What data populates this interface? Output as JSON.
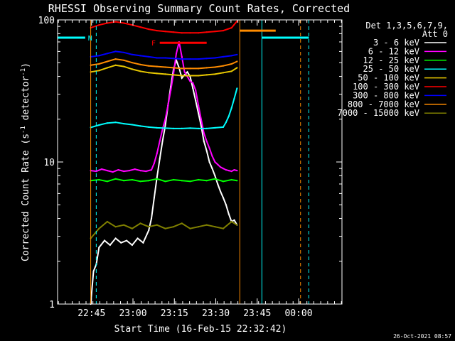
{
  "chart_data": {
    "type": "line",
    "title": "RHESSI Observing Summary Count Rates, Corrected",
    "xlabel": "Start Time (16-Feb-15 22:32:42)",
    "ylabel": "Corrected Count Rate (s",
    "ylabel_sup1": "-1",
    "ylabel_mid": " detector",
    "ylabel_sup2": "-1",
    "ylabel_end": ")",
    "x_unit": "minutes after 22:32:42",
    "xlim": [
      0,
      103
    ],
    "ylim": [
      1,
      100
    ],
    "yscale": "log",
    "x_ticks": [
      {
        "label": "22:45",
        "x": 12.3
      },
      {
        "label": "23:00",
        "x": 27.3
      },
      {
        "label": "23:15",
        "x": 42.3
      },
      {
        "label": "23:30",
        "x": 57.3
      },
      {
        "label": "23:45",
        "x": 72.3
      },
      {
        "label": "00:00",
        "x": 87.3
      }
    ],
    "y_ticks": [
      {
        "label": "1",
        "y": 1
      },
      {
        "label": "10",
        "y": 10
      },
      {
        "label": "100",
        "y": 100
      }
    ],
    "legend_header": [
      "Det 1,3,5,6,7,9,",
      "Att 0"
    ],
    "legend_position": "right",
    "series": [
      {
        "name": "3 - 6 keV",
        "color": "#ffffff",
        "x": [
          12,
          13,
          14,
          15,
          17,
          19,
          21,
          23,
          25,
          27,
          29,
          31,
          33,
          34,
          35,
          36,
          37,
          38,
          39,
          40,
          41,
          42,
          43,
          44,
          45,
          46,
          47,
          48,
          49,
          50,
          51,
          52,
          53,
          54,
          55,
          56,
          57,
          58,
          59,
          60,
          61,
          62,
          63,
          64,
          65
        ],
        "y": [
          1,
          1.7,
          1.9,
          2.5,
          2.8,
          2.6,
          2.9,
          2.7,
          2.8,
          2.6,
          2.9,
          2.7,
          3.3,
          4.0,
          5.6,
          7.8,
          10.5,
          14,
          18,
          25,
          34,
          45,
          52,
          46,
          39,
          41,
          43,
          40,
          33,
          27,
          22,
          18,
          14,
          12,
          10,
          9,
          8,
          7,
          6.2,
          5.6,
          5.0,
          4.3,
          3.8,
          3.9,
          3.6
        ]
      },
      {
        "name": "6 - 12 keV",
        "color": "#ff00ff",
        "x": [
          12,
          14,
          16,
          18,
          20,
          22,
          24,
          26,
          28,
          30,
          32,
          34,
          35,
          36,
          37,
          38,
          39,
          40,
          41,
          42,
          43,
          44,
          45,
          46,
          47,
          48,
          49,
          50,
          51,
          52,
          53,
          54,
          55,
          56,
          57,
          58,
          59,
          60,
          61,
          62,
          63,
          64,
          65
        ],
        "y": [
          8.7,
          8.6,
          8.9,
          8.7,
          8.5,
          8.8,
          8.6,
          8.7,
          8.9,
          8.7,
          8.6,
          8.8,
          9.8,
          11.5,
          14,
          17,
          20,
          25,
          32,
          42,
          58,
          70,
          55,
          43,
          40,
          37,
          36,
          32,
          25,
          20,
          16,
          14,
          12.5,
          11,
          10,
          9.6,
          9.2,
          9.0,
          8.8,
          8.7,
          8.6,
          8.8,
          8.7
        ]
      },
      {
        "name": "12 - 25 keV",
        "color": "#00ff00",
        "x": [
          12,
          15,
          18,
          21,
          24,
          27,
          30,
          33,
          36,
          39,
          42,
          45,
          48,
          51,
          54,
          57,
          60,
          63,
          65
        ],
        "y": [
          7.4,
          7.5,
          7.3,
          7.6,
          7.4,
          7.5,
          7.3,
          7.4,
          7.6,
          7.3,
          7.5,
          7.4,
          7.3,
          7.5,
          7.4,
          7.6,
          7.3,
          7.5,
          7.4
        ]
      },
      {
        "name": "25 - 50 keV",
        "color": "#00ffff",
        "x": [
          12,
          15,
          18,
          21,
          24,
          27,
          30,
          33,
          36,
          39,
          42,
          45,
          48,
          51,
          54,
          57,
          60,
          61,
          62,
          63,
          64,
          65
        ],
        "y": [
          17.5,
          18.2,
          18.8,
          19.0,
          18.6,
          18.3,
          17.9,
          17.6,
          17.4,
          17.3,
          17.2,
          17.2,
          17.3,
          17.2,
          17.2,
          17.4,
          17.6,
          19,
          21,
          24,
          28,
          33
        ]
      },
      {
        "name": "50 - 100 keV",
        "color": "#e8c800",
        "x": [
          12,
          15,
          18,
          21,
          24,
          27,
          30,
          33,
          36,
          39,
          42,
          45,
          48,
          51,
          54,
          57,
          60,
          63,
          65
        ],
        "y": [
          43,
          44,
          46,
          48,
          47,
          45,
          43.5,
          42.5,
          42,
          41.5,
          41,
          40.5,
          40.5,
          40.5,
          41,
          41.5,
          42.5,
          43.5,
          46
        ]
      },
      {
        "name": "100 - 300 keV",
        "color": "#ff0000",
        "x": [
          12,
          15,
          18,
          21,
          24,
          27,
          30,
          33,
          36,
          39,
          42,
          45,
          48,
          51,
          54,
          57,
          60,
          63,
          65
        ],
        "y": [
          88,
          92,
          95,
          97,
          95,
          92,
          89,
          86,
          84,
          83,
          82,
          81,
          81,
          81,
          82,
          83,
          84,
          88,
          98
        ]
      },
      {
        "name": "300 - 800 keV",
        "color": "#0000ff",
        "x": [
          12,
          15,
          18,
          21,
          24,
          27,
          30,
          33,
          36,
          39,
          42,
          45,
          48,
          51,
          54,
          57,
          60,
          63,
          65
        ],
        "y": [
          55,
          56,
          58,
          60,
          59,
          57,
          56,
          55,
          54,
          54,
          53.5,
          53,
          53,
          53,
          53.5,
          54,
          55,
          56,
          57
        ]
      },
      {
        "name": "800 - 7000 keV",
        "color": "#ff8c00",
        "x": [
          12,
          15,
          18,
          21,
          24,
          27,
          30,
          33,
          36,
          39,
          42,
          45,
          48,
          51,
          54,
          57,
          60,
          63,
          65
        ],
        "y": [
          48,
          49,
          51,
          53,
          52,
          50,
          48.5,
          47.5,
          47,
          46.5,
          46,
          45.5,
          45.5,
          45.5,
          46,
          46.5,
          47.5,
          49,
          51
        ]
      },
      {
        "name": "7000 - 15000 keV",
        "color": "#808000",
        "x": [
          12,
          15,
          18,
          21,
          24,
          27,
          30,
          33,
          36,
          39,
          42,
          45,
          48,
          51,
          54,
          57,
          60,
          63,
          65
        ],
        "y": [
          2.9,
          3.4,
          3.8,
          3.5,
          3.6,
          3.4,
          3.7,
          3.5,
          3.6,
          3.4,
          3.5,
          3.7,
          3.4,
          3.5,
          3.6,
          3.5,
          3.4,
          3.8,
          3.6
        ]
      }
    ],
    "flag_bars": [
      {
        "label": "N",
        "color": "#00ffff",
        "y": 75,
        "x_ranges": [
          [
            0,
            10
          ],
          [
            74,
            91
          ]
        ],
        "label_x": 11
      },
      {
        "label": "F",
        "color": "#ff0000",
        "y": 69,
        "x_ranges": [
          [
            37,
            54
          ]
        ],
        "label_x": 34
      },
      {
        "label": "",
        "color": "#ff8c00",
        "y": 84,
        "x_ranges": [
          [
            66,
            79
          ]
        ],
        "label_x": null
      }
    ],
    "vertical_lines": [
      {
        "x": 0,
        "color": "#00ffff",
        "style": "solid"
      },
      {
        "x": 12,
        "color": "#ff8c00",
        "style": "solid"
      },
      {
        "x": 14,
        "color": "#00ffff",
        "style": "dashed"
      },
      {
        "x": 66,
        "color": "#ff8c00",
        "style": "solid"
      },
      {
        "x": 74,
        "color": "#00ffff",
        "style": "solid"
      },
      {
        "x": 88,
        "color": "#ff8c00",
        "style": "dashed"
      },
      {
        "x": 91,
        "color": "#00ffff",
        "style": "dashed"
      }
    ],
    "timestamp": "26-Oct-2021 08:57"
  }
}
